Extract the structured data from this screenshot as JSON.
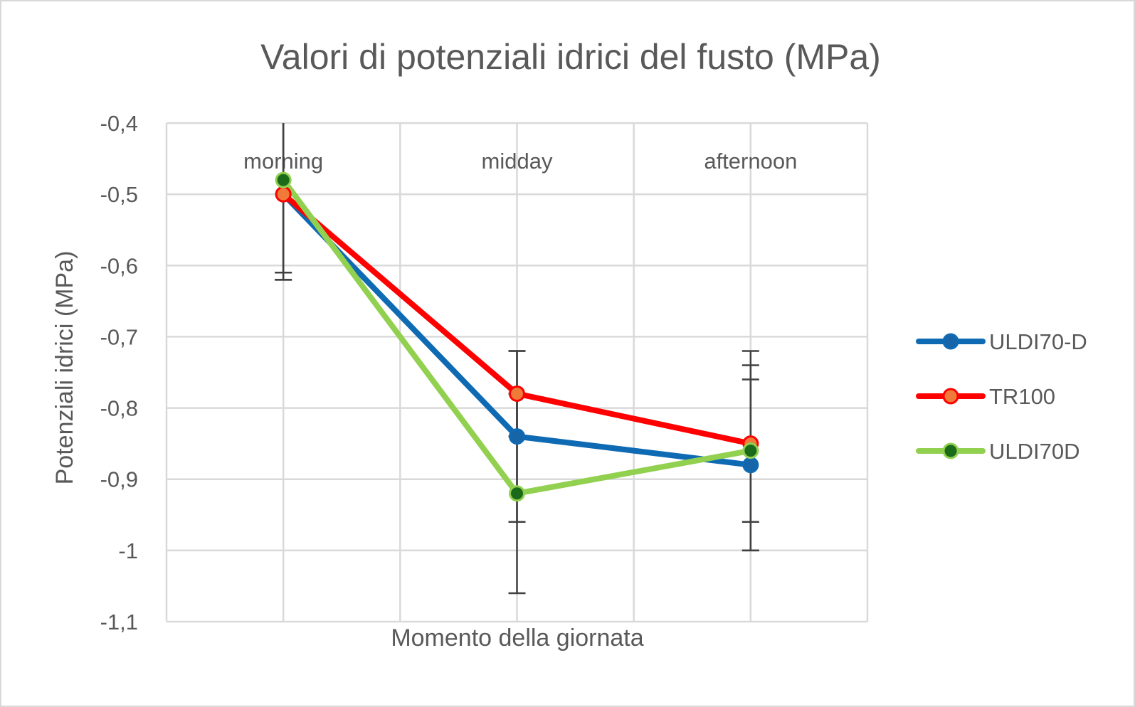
{
  "chart_data": {
    "type": "line",
    "title": "Valori di potenziali idrici del fusto (MPa)",
    "xlabel": "Momento della giornata",
    "ylabel": "Potenziali idrici (MPa)",
    "categories": [
      "morning",
      "midday",
      "afternoon"
    ],
    "category_labels_position": "top",
    "ylim": [
      -1.1,
      -0.4
    ],
    "yticks": [
      -0.4,
      -0.5,
      -0.6,
      -0.7,
      -0.8,
      -0.9,
      -1.0,
      -1.1
    ],
    "ytick_labels": [
      "-0,4",
      "-0,5",
      "-0,6",
      "-0,7",
      "-0,8",
      "-0,9",
      "-1",
      "-1,1"
    ],
    "grid": true,
    "legend_position": "right",
    "series": [
      {
        "name": "ULDI70-D",
        "line_color": "#0f6ab4",
        "marker_fill": "#1565a8",
        "marker_edge": "#0f6ab4",
        "values": [
          -0.5,
          -0.84,
          -0.88
        ],
        "error": [
          0.12,
          0.12,
          0.12
        ]
      },
      {
        "name": "TR100",
        "line_color": "#ff0000",
        "marker_fill": "#f07a3a",
        "marker_edge": "#ff0000",
        "values": [
          -0.5,
          -0.78,
          -0.85
        ],
        "error": [
          0.11,
          0.06,
          0.11
        ]
      },
      {
        "name": "ULDI70D",
        "line_color": "#92d050",
        "marker_fill": "#1a6a1a",
        "marker_edge": "#92d050",
        "values": [
          -0.48,
          -0.92,
          -0.86
        ],
        "error": [
          0.14,
          0.14,
          0.14
        ]
      }
    ]
  }
}
